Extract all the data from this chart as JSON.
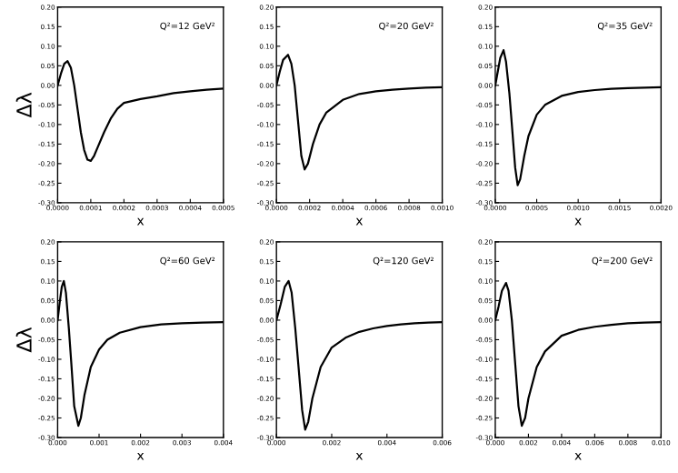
{
  "chart_data": [
    {
      "type": "line",
      "ylabel": "Δλ",
      "xlabel": "x",
      "annotations": [
        "Q²=12 GeV²"
      ],
      "color": "#000000",
      "grid": false,
      "legend": false,
      "marker": "none",
      "x": [
        0,
        1e-05,
        2e-05,
        3e-05,
        4e-05,
        5e-05,
        6e-05,
        7e-05,
        8e-05,
        9e-05,
        0.0001,
        0.00011,
        0.00012,
        0.00014,
        0.00016,
        0.00018,
        0.0002,
        0.00025,
        0.0003,
        0.00035,
        0.0004,
        0.00045,
        0.0005
      ],
      "values": [
        0,
        0.03,
        0.055,
        0.062,
        0.045,
        0.0,
        -0.06,
        -0.12,
        -0.165,
        -0.19,
        -0.193,
        -0.18,
        -0.16,
        -0.12,
        -0.085,
        -0.06,
        -0.045,
        -0.035,
        -0.028,
        -0.02,
        -0.015,
        -0.011,
        -0.008
      ],
      "xlim": [
        0,
        0.0005
      ],
      "xticks": [
        {
          "value": 0,
          "label": "0.0000"
        },
        {
          "value": 0.0001,
          "label": "0.0001"
        },
        {
          "value": 0.0002,
          "label": "0.0002"
        },
        {
          "value": 0.0003,
          "label": "0.0003"
        },
        {
          "value": 0.0004,
          "label": "0.0004"
        },
        {
          "value": 0.0005,
          "label": "0.0005"
        }
      ],
      "ylim": [
        -0.3,
        0.2
      ],
      "yticks": [
        {
          "value": -0.3,
          "label": "-0.30"
        },
        {
          "value": -0.25,
          "label": "-0.25"
        },
        {
          "value": -0.2,
          "label": "-0.20"
        },
        {
          "value": -0.15,
          "label": "-0.15"
        },
        {
          "value": -0.1,
          "label": "-0.10"
        },
        {
          "value": -0.05,
          "label": "-0.05"
        },
        {
          "value": 0,
          "label": "0.00"
        },
        {
          "value": 0.05,
          "label": "0.05"
        },
        {
          "value": 0.1,
          "label": "0.10"
        },
        {
          "value": 0.15,
          "label": "0.15"
        },
        {
          "value": 0.2,
          "label": "0.20"
        }
      ]
    },
    {
      "type": "line",
      "xlabel": "x",
      "annotations": [
        "Q²=20 GeV²"
      ],
      "color": "#000000",
      "grid": false,
      "legend": false,
      "marker": "none",
      "x": [
        0,
        2e-05,
        4e-05,
        7e-05,
        9e-05,
        0.00011,
        0.00013,
        0.00015,
        0.00017,
        0.00019,
        0.00022,
        0.00026,
        0.0003,
        0.0004,
        0.0005,
        0.0006,
        0.0007,
        0.0008,
        0.0009,
        0.001
      ],
      "values": [
        0,
        0.035,
        0.065,
        0.078,
        0.055,
        0.0,
        -0.09,
        -0.18,
        -0.215,
        -0.2,
        -0.15,
        -0.1,
        -0.07,
        -0.037,
        -0.022,
        -0.015,
        -0.011,
        -0.008,
        -0.006,
        -0.005
      ],
      "xlim": [
        0,
        0.001
      ],
      "xticks": [
        {
          "value": 0,
          "label": "0.0000"
        },
        {
          "value": 0.0002,
          "label": "0.0002"
        },
        {
          "value": 0.0004,
          "label": "0.0004"
        },
        {
          "value": 0.0006,
          "label": "0.0006"
        },
        {
          "value": 0.0008,
          "label": "0.0008"
        },
        {
          "value": 0.001,
          "label": "0.0010"
        }
      ],
      "ylim": [
        -0.3,
        0.2
      ],
      "yticks": [
        {
          "value": -0.3,
          "label": "-0.30"
        },
        {
          "value": -0.25,
          "label": "-0.25"
        },
        {
          "value": -0.2,
          "label": "-0.20"
        },
        {
          "value": -0.15,
          "label": "-0.15"
        },
        {
          "value": -0.1,
          "label": "-0.10"
        },
        {
          "value": -0.05,
          "label": "-0.05"
        },
        {
          "value": 0,
          "label": "0.00"
        },
        {
          "value": 0.05,
          "label": "0.05"
        },
        {
          "value": 0.1,
          "label": "0.10"
        },
        {
          "value": 0.15,
          "label": "0.15"
        },
        {
          "value": 0.2,
          "label": "0.20"
        }
      ]
    },
    {
      "type": "line",
      "xlabel": "x",
      "annotations": [
        "Q²=35 GeV²"
      ],
      "color": "#000000",
      "grid": false,
      "legend": false,
      "marker": "none",
      "x": [
        0,
        3e-05,
        6e-05,
        0.0001,
        0.00013,
        0.00017,
        0.0002,
        0.00024,
        0.00027,
        0.0003,
        0.00035,
        0.0004,
        0.0005,
        0.0006,
        0.0008,
        0.001,
        0.0012,
        0.0014,
        0.0016,
        0.0018,
        0.002
      ],
      "values": [
        0,
        0.035,
        0.07,
        0.09,
        0.06,
        -0.02,
        -0.1,
        -0.21,
        -0.255,
        -0.24,
        -0.18,
        -0.13,
        -0.075,
        -0.05,
        -0.027,
        -0.017,
        -0.012,
        -0.009,
        -0.007,
        -0.006,
        -0.005
      ],
      "xlim": [
        0,
        0.002
      ],
      "xticks": [
        {
          "value": 0,
          "label": "0.0000"
        },
        {
          "value": 0.0005,
          "label": "0.0005"
        },
        {
          "value": 0.001,
          "label": "0.0010"
        },
        {
          "value": 0.0015,
          "label": "0.0015"
        },
        {
          "value": 0.002,
          "label": "0.0020"
        }
      ],
      "ylim": [
        -0.3,
        0.2
      ],
      "yticks": [
        {
          "value": -0.3,
          "label": "-0.30"
        },
        {
          "value": -0.25,
          "label": "-0.25"
        },
        {
          "value": -0.2,
          "label": "-0.20"
        },
        {
          "value": -0.15,
          "label": "-0.15"
        },
        {
          "value": -0.1,
          "label": "-0.10"
        },
        {
          "value": -0.05,
          "label": "-0.05"
        },
        {
          "value": 0,
          "label": "0.00"
        },
        {
          "value": 0.05,
          "label": "0.05"
        },
        {
          "value": 0.1,
          "label": "0.10"
        },
        {
          "value": 0.15,
          "label": "0.15"
        },
        {
          "value": 0.2,
          "label": "0.20"
        }
      ]
    },
    {
      "type": "line",
      "ylabel": "Δλ",
      "xlabel": "x",
      "annotations": [
        "Q²=60 GeV²"
      ],
      "color": "#000000",
      "grid": false,
      "legend": false,
      "marker": "none",
      "x": [
        0,
        5e-05,
        0.0001,
        0.00015,
        0.0002,
        0.00027,
        0.00033,
        0.0004,
        0.0005,
        0.00056,
        0.00065,
        0.0008,
        0.001,
        0.0012,
        0.0015,
        0.002,
        0.0025,
        0.003,
        0.0035,
        0.004
      ],
      "values": [
        0,
        0.045,
        0.085,
        0.1,
        0.07,
        -0.02,
        -0.11,
        -0.22,
        -0.27,
        -0.25,
        -0.19,
        -0.12,
        -0.075,
        -0.05,
        -0.032,
        -0.018,
        -0.011,
        -0.008,
        -0.006,
        -0.005
      ],
      "xlim": [
        0,
        0.004
      ],
      "xticks": [
        {
          "value": 0,
          "label": "0.000"
        },
        {
          "value": 0.001,
          "label": "0.001"
        },
        {
          "value": 0.002,
          "label": "0.002"
        },
        {
          "value": 0.003,
          "label": "0.003"
        },
        {
          "value": 0.004,
          "label": "0.004"
        }
      ],
      "ylim": [
        -0.3,
        0.2
      ],
      "yticks": [
        {
          "value": -0.3,
          "label": "-0.30"
        },
        {
          "value": -0.25,
          "label": "-0.25"
        },
        {
          "value": -0.2,
          "label": "-0.20"
        },
        {
          "value": -0.15,
          "label": "-0.15"
        },
        {
          "value": -0.1,
          "label": "-0.10"
        },
        {
          "value": -0.05,
          "label": "-0.05"
        },
        {
          "value": 0,
          "label": "0.00"
        },
        {
          "value": 0.05,
          "label": "0.05"
        },
        {
          "value": 0.1,
          "label": "0.10"
        },
        {
          "value": 0.15,
          "label": "0.15"
        },
        {
          "value": 0.2,
          "label": "0.20"
        }
      ]
    },
    {
      "type": "line",
      "xlabel": "x",
      "annotations": [
        "Q²=120 GeV²"
      ],
      "color": "#000000",
      "grid": false,
      "legend": false,
      "marker": "none",
      "x": [
        0,
        0.00015,
        0.0003,
        0.00044,
        0.00055,
        0.00068,
        0.0008,
        0.00093,
        0.00104,
        0.00115,
        0.0013,
        0.0016,
        0.002,
        0.0025,
        0.003,
        0.0035,
        0.004,
        0.0045,
        0.005,
        0.0055,
        0.006
      ],
      "values": [
        0,
        0.04,
        0.085,
        0.1,
        0.07,
        -0.02,
        -0.12,
        -0.23,
        -0.28,
        -0.26,
        -0.2,
        -0.12,
        -0.07,
        -0.045,
        -0.03,
        -0.021,
        -0.015,
        -0.011,
        -0.008,
        -0.006,
        -0.005
      ],
      "xlim": [
        0,
        0.006
      ],
      "xticks": [
        {
          "value": 0,
          "label": "0.000"
        },
        {
          "value": 0.002,
          "label": "0.002"
        },
        {
          "value": 0.004,
          "label": "0.004"
        },
        {
          "value": 0.006,
          "label": "0.006"
        }
      ],
      "ylim": [
        -0.3,
        0.2
      ],
      "yticks": [
        {
          "value": -0.3,
          "label": "-0.30"
        },
        {
          "value": -0.25,
          "label": "-0.25"
        },
        {
          "value": -0.2,
          "label": "-0.20"
        },
        {
          "value": -0.15,
          "label": "-0.15"
        },
        {
          "value": -0.1,
          "label": "-0.10"
        },
        {
          "value": -0.05,
          "label": "-0.05"
        },
        {
          "value": 0,
          "label": "0.00"
        },
        {
          "value": 0.05,
          "label": "0.05"
        },
        {
          "value": 0.1,
          "label": "0.10"
        },
        {
          "value": 0.15,
          "label": "0.15"
        },
        {
          "value": 0.2,
          "label": "0.20"
        }
      ]
    },
    {
      "type": "line",
      "xlabel": "x",
      "annotations": [
        "Q²=200 GeV²"
      ],
      "color": "#000000",
      "grid": false,
      "legend": false,
      "marker": "none",
      "x": [
        0,
        0.0002,
        0.0004,
        0.00065,
        0.0008,
        0.001,
        0.0012,
        0.0014,
        0.0016,
        0.0018,
        0.002,
        0.0025,
        0.003,
        0.004,
        0.005,
        0.006,
        0.007,
        0.008,
        0.009,
        0.01
      ],
      "values": [
        0,
        0.035,
        0.075,
        0.095,
        0.075,
        0.0,
        -0.11,
        -0.22,
        -0.27,
        -0.25,
        -0.2,
        -0.12,
        -0.08,
        -0.04,
        -0.025,
        -0.017,
        -0.012,
        -0.008,
        -0.006,
        -0.005
      ],
      "xlim": [
        0,
        0.01
      ],
      "xticks": [
        {
          "value": 0,
          "label": "0.000"
        },
        {
          "value": 0.002,
          "label": "0.002"
        },
        {
          "value": 0.004,
          "label": "0.004"
        },
        {
          "value": 0.006,
          "label": "0.006"
        },
        {
          "value": 0.008,
          "label": "0.008"
        },
        {
          "value": 0.01,
          "label": "0.010"
        }
      ],
      "ylim": [
        -0.3,
        0.2
      ],
      "yticks": [
        {
          "value": -0.3,
          "label": "-0.30"
        },
        {
          "value": -0.25,
          "label": "-0.25"
        },
        {
          "value": -0.2,
          "label": "-0.20"
        },
        {
          "value": -0.15,
          "label": "-0.15"
        },
        {
          "value": -0.1,
          "label": "-0.10"
        },
        {
          "value": -0.05,
          "label": "-0.05"
        },
        {
          "value": 0,
          "label": "0.00"
        },
        {
          "value": 0.05,
          "label": "0.05"
        },
        {
          "value": 0.1,
          "label": "0.10"
        },
        {
          "value": 0.15,
          "label": "0.15"
        },
        {
          "value": 0.2,
          "label": "0.20"
        }
      ]
    }
  ]
}
